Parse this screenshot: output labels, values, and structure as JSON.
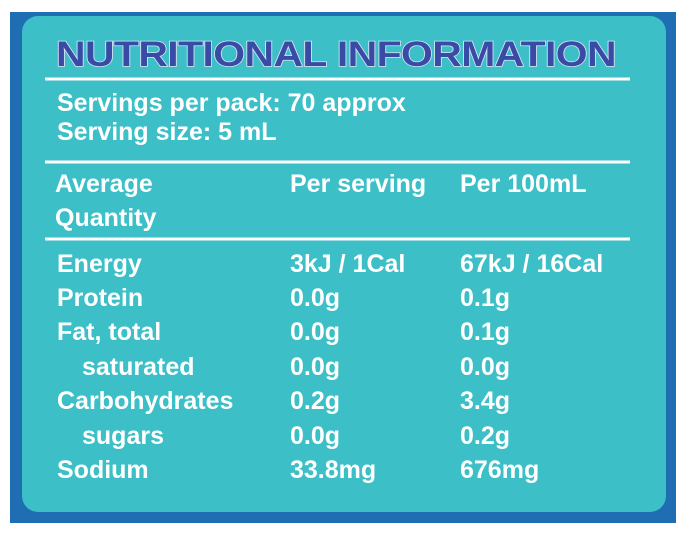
{
  "title": "NUTRITIONAL INFORMATION",
  "servings": [
    "Servings per pack:  70 approx",
    "Serving size: 5 mL"
  ],
  "table": {
    "header": [
      [
        "Average",
        "Quantity"
      ],
      "Per serving",
      "Per 100mL"
    ],
    "rows": [
      [
        "Energy",
        "3kJ / 1Cal",
        "67kJ / 16Cal"
      ],
      [
        "Protein",
        "0.0g",
        "0.1g"
      ],
      [
        "Fat, total",
        "0.0g",
        "0.1g"
      ],
      [
        "saturated",
        "0.0g",
        "0.0g"
      ],
      [
        "Carbohydrates",
        "0.2g",
        "3.4g"
      ],
      [
        "sugars",
        "0.0g",
        "0.2g"
      ],
      [
        "Sodium",
        "33.8mg",
        "676mg"
      ]
    ]
  }
}
